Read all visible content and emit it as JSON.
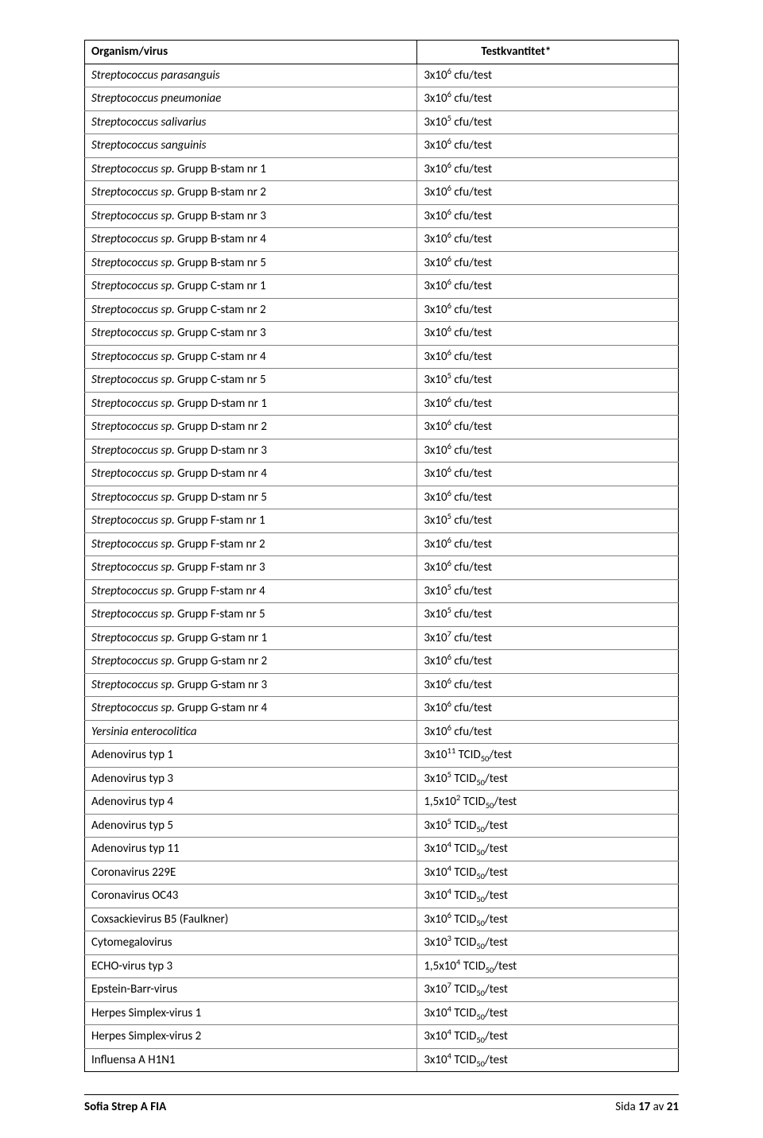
{
  "table": {
    "header": {
      "col1": "Organism/virus",
      "col2": "Testkvantitet*"
    },
    "rows": [
      {
        "name": "Streptococcus parasanguis",
        "italic": true,
        "coef": "3",
        "exp": "6",
        "unit": "cfu/test"
      },
      {
        "name": "Streptococcus pneumoniae",
        "italic": true,
        "coef": "3",
        "exp": "6",
        "unit": "cfu/test"
      },
      {
        "name": "Streptococcus salivarius",
        "italic": true,
        "coef": "3",
        "exp": "5",
        "unit": "cfu/test"
      },
      {
        "name": "Streptococcus sanguinis",
        "italic": true,
        "coef": "3",
        "exp": "6",
        "unit": "cfu/test"
      },
      {
        "name": "Streptococcus sp.",
        "suffix": " Grupp B-stam nr 1",
        "italic": true,
        "coef": "3",
        "exp": "6",
        "unit": "cfu/test"
      },
      {
        "name": "Streptococcus sp.",
        "suffix": " Grupp B-stam nr 2",
        "italic": true,
        "coef": "3",
        "exp": "6",
        "unit": "cfu/test"
      },
      {
        "name": "Streptococcus sp.",
        "suffix": " Grupp B-stam nr 3",
        "italic": true,
        "coef": "3",
        "exp": "6",
        "unit": "cfu/test"
      },
      {
        "name": "Streptococcus sp.",
        "suffix": " Grupp B-stam nr 4",
        "italic": true,
        "coef": "3",
        "exp": "6",
        "unit": "cfu/test"
      },
      {
        "name": "Streptococcus sp.",
        "suffix": " Grupp B-stam nr 5",
        "italic": true,
        "coef": "3",
        "exp": "6",
        "unit": "cfu/test"
      },
      {
        "name": "Streptococcus sp.",
        "suffix": " Grupp C-stam nr 1",
        "italic": true,
        "coef": "3",
        "exp": "6",
        "unit": "cfu/test"
      },
      {
        "name": "Streptococcus sp.",
        "suffix": " Grupp C-stam nr 2",
        "italic": true,
        "coef": "3",
        "exp": "6",
        "unit": "cfu/test"
      },
      {
        "name": "Streptococcus sp.",
        "suffix": " Grupp C-stam nr 3",
        "italic": true,
        "coef": "3",
        "exp": "6",
        "unit": "cfu/test"
      },
      {
        "name": "Streptococcus sp.",
        "suffix": " Grupp C-stam nr 4",
        "italic": true,
        "coef": "3",
        "exp": "6",
        "unit": "cfu/test"
      },
      {
        "name": "Streptococcus sp.",
        "suffix": " Grupp C-stam nr 5",
        "italic": true,
        "coef": "3",
        "exp": "5",
        "unit": "cfu/test"
      },
      {
        "name": "Streptococcus sp.",
        "suffix": " Grupp D-stam nr 1",
        "italic": true,
        "coef": "3",
        "exp": "6",
        "unit": "cfu/test"
      },
      {
        "name": "Streptococcus sp.",
        "suffix": " Grupp D-stam nr 2",
        "italic": true,
        "coef": "3",
        "exp": "6",
        "unit": "cfu/test"
      },
      {
        "name": "Streptococcus sp.",
        "suffix": " Grupp D-stam nr 3",
        "italic": true,
        "coef": "3",
        "exp": "6",
        "unit": "cfu/test"
      },
      {
        "name": "Streptococcus sp.",
        "suffix": " Grupp D-stam nr 4",
        "italic": true,
        "coef": "3",
        "exp": "6",
        "unit": "cfu/test"
      },
      {
        "name": "Streptococcus sp.",
        "suffix": " Grupp D-stam nr 5",
        "italic": true,
        "coef": "3",
        "exp": "6",
        "unit": "cfu/test"
      },
      {
        "name": "Streptococcus sp.",
        "suffix": " Grupp F-stam nr 1",
        "italic": true,
        "coef": "3",
        "exp": "5",
        "unit": "cfu/test"
      },
      {
        "name": "Streptococcus sp.",
        "suffix": " Grupp F-stam nr 2",
        "italic": true,
        "coef": "3",
        "exp": "6",
        "unit": "cfu/test"
      },
      {
        "name": "Streptococcus sp.",
        "suffix": " Grupp F-stam nr 3",
        "italic": true,
        "coef": "3",
        "exp": "6",
        "unit": "cfu/test"
      },
      {
        "name": "Streptococcus sp.",
        "suffix": " Grupp F-stam nr 4",
        "italic": true,
        "coef": "3",
        "exp": "5",
        "unit": "cfu/test"
      },
      {
        "name": "Streptococcus sp.",
        "suffix": " Grupp F-stam nr 5",
        "italic": true,
        "coef": "3",
        "exp": "5",
        "unit": "cfu/test"
      },
      {
        "name": "Streptococcus sp.",
        "suffix": " Grupp G-stam nr 1",
        "italic": true,
        "coef": "3",
        "exp": "7",
        "unit": "cfu/test"
      },
      {
        "name": "Streptococcus sp.",
        "suffix": " Grupp G-stam nr 2",
        "italic": true,
        "coef": "3",
        "exp": "6",
        "unit": "cfu/test"
      },
      {
        "name": "Streptococcus sp.",
        "suffix": " Grupp G-stam nr 3",
        "italic": true,
        "coef": "3",
        "exp": "6",
        "unit": "cfu/test"
      },
      {
        "name": "Streptococcus sp.",
        "suffix": " Grupp G-stam nr 4",
        "italic": true,
        "coef": "3",
        "exp": "6",
        "unit": "cfu/test"
      },
      {
        "name": "Yersinia enterocolitica",
        "italic": true,
        "coef": "3",
        "exp": "6",
        "unit": "cfu/test"
      },
      {
        "name": "Adenovirus typ 1",
        "italic": false,
        "coef": "3",
        "exp": "11",
        "unit": "TCID",
        "sub": "50",
        "tail": "/test"
      },
      {
        "name": "Adenovirus typ 3",
        "italic": false,
        "coef": "3",
        "exp": "5",
        "unit": "TCID",
        "sub": "50",
        "tail": "/test"
      },
      {
        "name": "Adenovirus typ 4",
        "italic": false,
        "coef": "1,5",
        "exp": "2",
        "unit": "TCID",
        "sub": "50",
        "tail": "/test"
      },
      {
        "name": "Adenovirus typ 5",
        "italic": false,
        "coef": "3",
        "exp": "5",
        "unit": "TCID",
        "sub": "50",
        "tail": "/test"
      },
      {
        "name": "Adenovirus typ 11",
        "italic": false,
        "coef": "3",
        "exp": "4",
        "unit": "TCID",
        "sub": "50",
        "tail": "/test"
      },
      {
        "name": "Coronavirus 229E",
        "italic": false,
        "coef": "3",
        "exp": "4",
        "unit": "TCID",
        "sub": "50",
        "tail": "/test"
      },
      {
        "name": "Coronavirus OC43",
        "italic": false,
        "coef": "3",
        "exp": "4",
        "unit": "TCID",
        "sub": "50",
        "tail": "/test"
      },
      {
        "name": "Coxsackievirus B5 (Faulkner)",
        "italic": false,
        "coef": "3",
        "exp": "6",
        "unit": "TCID",
        "sub": "50",
        "tail": "/test"
      },
      {
        "name": "Cytomegalovirus",
        "italic": false,
        "coef": "3",
        "exp": "3",
        "unit": "TCID",
        "sub": "50",
        "tail": "/test"
      },
      {
        "name": "ECHO-virus typ 3",
        "italic": false,
        "coef": "1,5",
        "exp": "4",
        "unit": "TCID",
        "sub": "50",
        "tail": "/test"
      },
      {
        "name": "Epstein-Barr-virus",
        "italic": false,
        "coef": "3",
        "exp": "7",
        "unit": "TCID",
        "sub": "50",
        "tail": "/test"
      },
      {
        "name": "Herpes Simplex-virus 1",
        "italic": false,
        "coef": "3",
        "exp": "4",
        "unit": "TCID",
        "sub": "50",
        "tail": "/test"
      },
      {
        "name": "Herpes Simplex-virus 2",
        "italic": false,
        "coef": "3",
        "exp": "4",
        "unit": "TCID",
        "sub": "50",
        "tail": "/test"
      },
      {
        "name": "Influensa A H1N1",
        "italic": false,
        "coef": "3",
        "exp": "4",
        "unit": "TCID",
        "sub": "50",
        "tail": "/test"
      }
    ]
  },
  "footer": {
    "left": "Sofia Strep A FIA",
    "right_prefix": "Sida ",
    "page": "17",
    "of_word": " av ",
    "total": "21"
  }
}
